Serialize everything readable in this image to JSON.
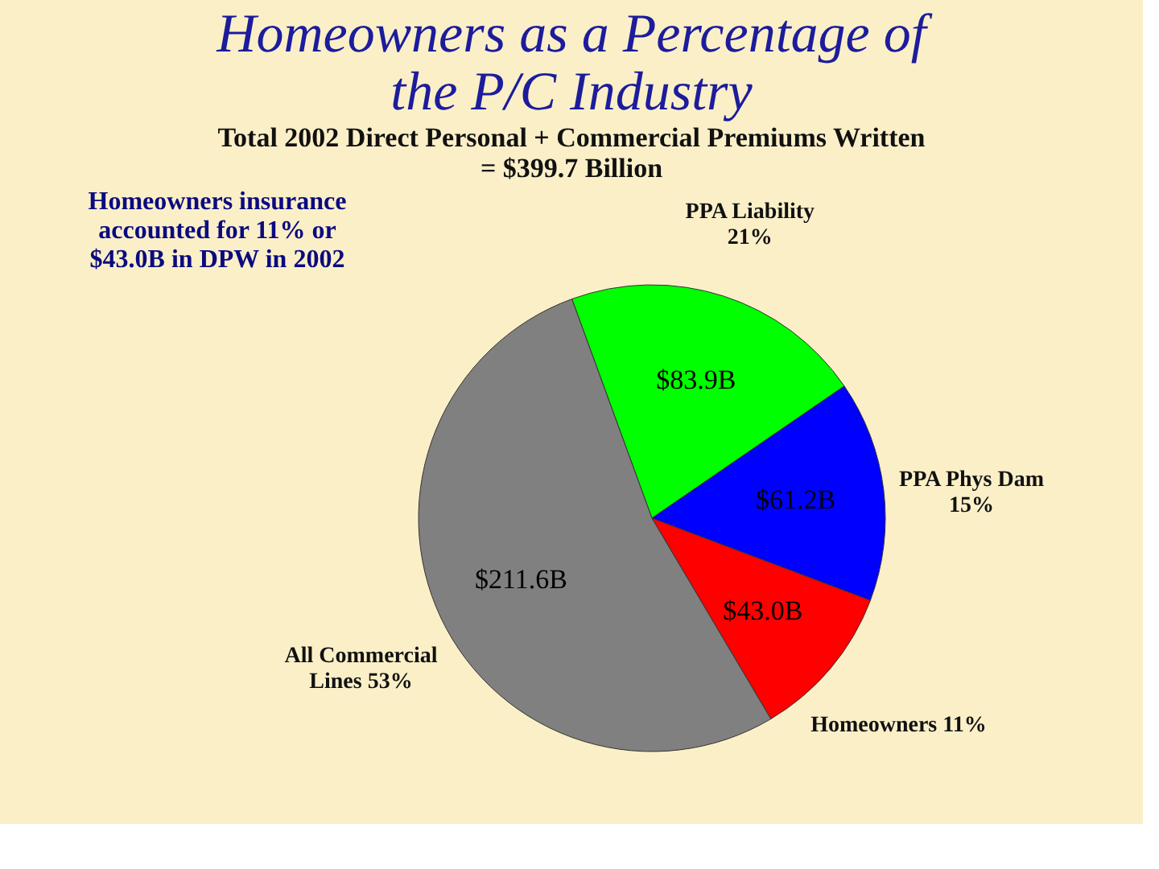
{
  "chart_data": {
    "type": "pie",
    "title": "Homeowners as a Percentage of the P/C Industry",
    "subtitle": "Total 2002 Direct Personal + Commercial Premiums Written = $399.7 Billion",
    "categories": [
      "PPA Liability 21%",
      "PPA Phys Dam 15%",
      "Homeowners 11%",
      "All Commercial Lines 53%"
    ],
    "values": [
      83.9,
      61.2,
      43.0,
      211.6
    ],
    "colors": [
      "#00ff00",
      "#0000ff",
      "#ff0000",
      "#808080"
    ],
    "value_labels": [
      "$83.9B",
      "$61.2B",
      "$43.0B",
      "$211.6B"
    ],
    "annotations": [
      "Homeowners insurance accounted for 11% or $43.0B in DPW in 2002"
    ],
    "legend": false
  }
}
